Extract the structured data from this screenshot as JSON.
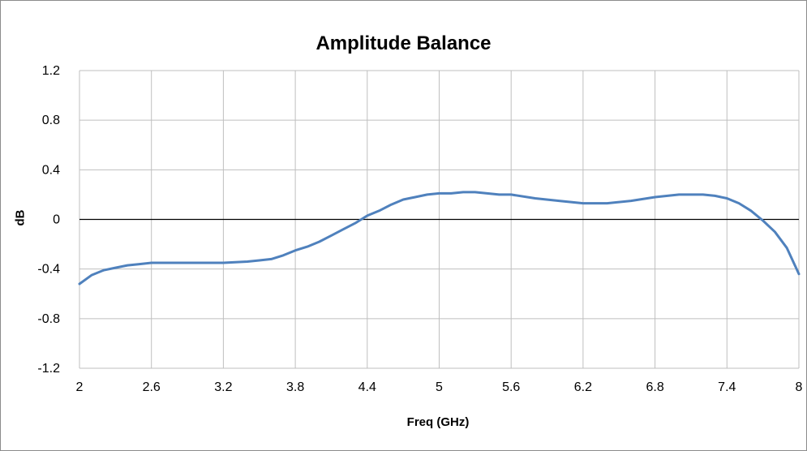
{
  "chart_data": {
    "type": "line",
    "title": "Amplitude Balance",
    "xlabel": "Freq (GHz)",
    "ylabel": "dB",
    "xlim": [
      2,
      8
    ],
    "ylim": [
      -1.2,
      1.2
    ],
    "x_ticks": [
      2,
      2.6,
      3.2,
      3.8,
      4.4,
      5,
      5.6,
      6.2,
      6.8,
      7.4,
      8
    ],
    "y_ticks": [
      -1.2,
      -0.8,
      -0.4,
      0,
      0.4,
      0.8,
      1.2
    ],
    "x_tick_labels": [
      "2",
      "2.6",
      "3.2",
      "3.8",
      "4.4",
      "5",
      "5.6",
      "6.2",
      "6.8",
      "7.4",
      "8"
    ],
    "y_tick_labels": [
      "-1.2",
      "-0.8",
      "-0.4",
      "0",
      "0.4",
      "0.8",
      "1.2"
    ],
    "grid": true,
    "legend": "none",
    "series": [
      {
        "color": "#4f81bd",
        "x": [
          2.0,
          2.1,
          2.2,
          2.3,
          2.4,
          2.5,
          2.6,
          2.8,
          3.0,
          3.2,
          3.4,
          3.5,
          3.6,
          3.7,
          3.8,
          3.9,
          4.0,
          4.1,
          4.2,
          4.3,
          4.4,
          4.5,
          4.6,
          4.7,
          4.8,
          4.9,
          5.0,
          5.1,
          5.2,
          5.3,
          5.4,
          5.5,
          5.6,
          5.8,
          6.0,
          6.2,
          6.4,
          6.6,
          6.8,
          7.0,
          7.1,
          7.2,
          7.3,
          7.4,
          7.5,
          7.6,
          7.7,
          7.8,
          7.9,
          8.0
        ],
        "y": [
          -0.52,
          -0.45,
          -0.41,
          -0.39,
          -0.37,
          -0.36,
          -0.35,
          -0.35,
          -0.35,
          -0.35,
          -0.34,
          -0.33,
          -0.32,
          -0.29,
          -0.25,
          -0.22,
          -0.18,
          -0.13,
          -0.08,
          -0.03,
          0.03,
          0.07,
          0.12,
          0.16,
          0.18,
          0.2,
          0.21,
          0.21,
          0.22,
          0.22,
          0.21,
          0.2,
          0.2,
          0.17,
          0.15,
          0.13,
          0.13,
          0.15,
          0.18,
          0.2,
          0.2,
          0.2,
          0.19,
          0.17,
          0.13,
          0.07,
          -0.01,
          -0.1,
          -0.23,
          -0.44
        ]
      }
    ]
  }
}
